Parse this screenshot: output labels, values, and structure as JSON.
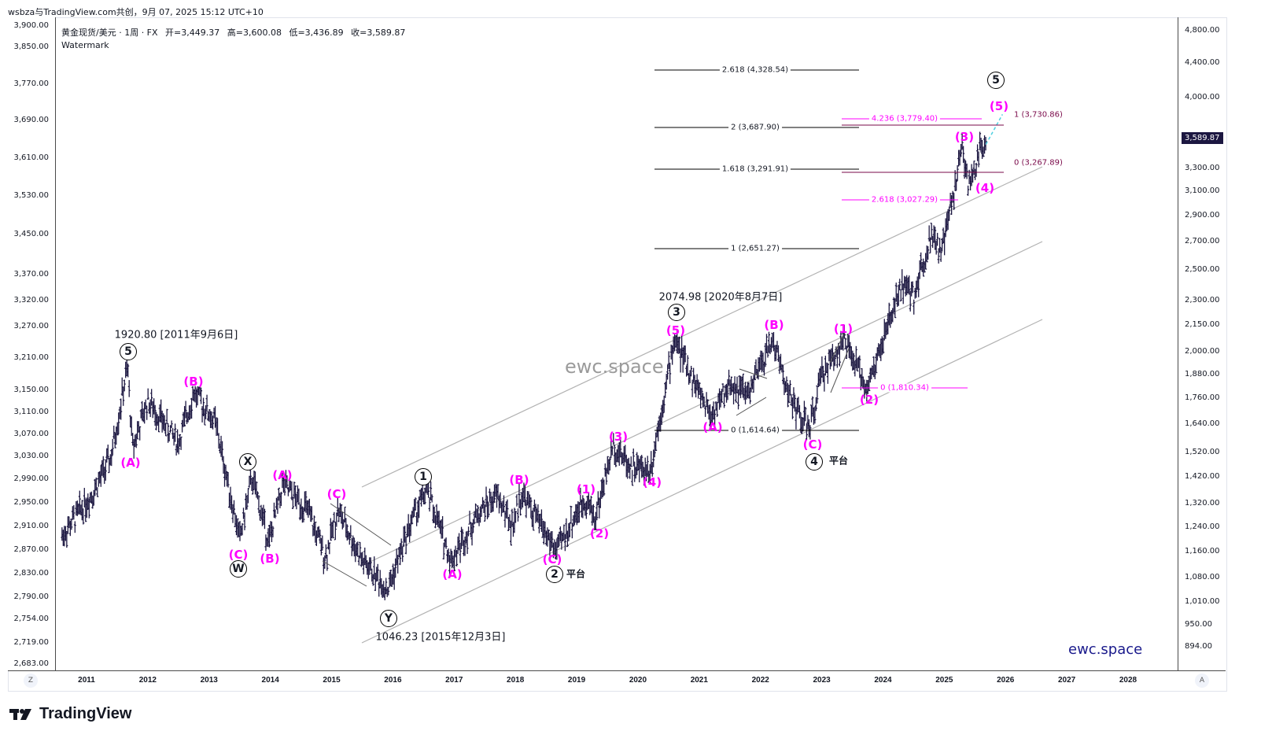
{
  "header": {
    "attribution": "wsbza与TradingView.com共创，9月 07, 2025 15:12 UTC+10"
  },
  "legend": {
    "symbol": "黄金现货/美元 · 1周 · FX",
    "open": "开=3,449.37",
    "high": "高=3,600.08",
    "low": "低=3,436.89",
    "close": "收=3,589.87",
    "watermark_label": "Watermark"
  },
  "price_badge": "3,589.87",
  "watermark": "ewc.space",
  "brand": "ewc.space",
  "footer": {
    "logo_text": "TradingView"
  },
  "axis_buttons": {
    "left": "Z",
    "right": "A"
  },
  "colors": {
    "bars": "#1c1741",
    "wave_label": "#ff00ff",
    "fib_black": "#000000",
    "fib_pink": "#ff00ff",
    "fib_maroon": "#7a0a4a",
    "channel": "#b2b2b2",
    "projection": "#4dd0e1"
  },
  "chart_data": {
    "type": "bar",
    "title": "黄金现货/美元 · 1周 · FX",
    "scale": "log",
    "x_ticks": [
      "2011",
      "2012",
      "2013",
      "2014",
      "2015",
      "2016",
      "2017",
      "2018",
      "2019",
      "2020",
      "2021",
      "2022",
      "2023",
      "2024",
      "2025",
      "2026",
      "2027",
      "2028"
    ],
    "left_axis_ticks": [
      "3,900.00",
      "3,850.00",
      "3,770.00",
      "3,690.00",
      "3,610.00",
      "3,530.00",
      "3,450.00",
      "3,370.00",
      "3,320.00",
      "3,270.00",
      "3,210.00",
      "3,150.00",
      "3,110.00",
      "3,070.00",
      "3,030.00",
      "2,990.00",
      "2,950.00",
      "2,910.00",
      "2,870.00",
      "2,830.00",
      "2,790.00",
      "2,754.00",
      "2,719.00",
      "2,683.00"
    ],
    "right_axis_ticks": [
      "4,800.00",
      "4,400.00",
      "4,000.00",
      "3,300.00",
      "3,100.00",
      "2,900.00",
      "2,700.00",
      "2,500.00",
      "2,300.00",
      "2,150.00",
      "2,000.00",
      "1,880.00",
      "1,760.00",
      "1,640.00",
      "1,520.00",
      "1,420.00",
      "1,320.00",
      "1,240.00",
      "1,160.00",
      "1,080.00",
      "1,010.00",
      "950.00",
      "894.00"
    ],
    "right_axis_values": [
      4800,
      4400,
      4000,
      3300,
      3100,
      2900,
      2700,
      2500,
      2300,
      2150,
      2000,
      1880,
      1760,
      1640,
      1520,
      1420,
      1320,
      1240,
      1160,
      1080,
      1010,
      950,
      894
    ],
    "series_keypoints": [
      {
        "t": 2010.6,
        "p": 1210
      },
      {
        "t": 2011.1,
        "p": 1360
      },
      {
        "t": 2011.4,
        "p": 1500
      },
      {
        "t": 2011.67,
        "p": 1920.8
      },
      {
        "t": 2011.75,
        "p": 1540
      },
      {
        "t": 2012.0,
        "p": 1750
      },
      {
        "t": 2012.5,
        "p": 1560
      },
      {
        "t": 2012.75,
        "p": 1790
      },
      {
        "t": 2013.1,
        "p": 1650
      },
      {
        "t": 2013.5,
        "p": 1200
      },
      {
        "t": 2013.7,
        "p": 1420
      },
      {
        "t": 2013.98,
        "p": 1190
      },
      {
        "t": 2014.2,
        "p": 1390
      },
      {
        "t": 2014.6,
        "p": 1300
      },
      {
        "t": 2014.9,
        "p": 1140
      },
      {
        "t": 2015.1,
        "p": 1300
      },
      {
        "t": 2015.5,
        "p": 1130
      },
      {
        "t": 2015.92,
        "p": 1046.23
      },
      {
        "t": 2016.3,
        "p": 1260
      },
      {
        "t": 2016.55,
        "p": 1375
      },
      {
        "t": 2016.95,
        "p": 1130
      },
      {
        "t": 2017.4,
        "p": 1290
      },
      {
        "t": 2017.7,
        "p": 1350
      },
      {
        "t": 2017.95,
        "p": 1240
      },
      {
        "t": 2018.1,
        "p": 1360
      },
      {
        "t": 2018.67,
        "p": 1160
      },
      {
        "t": 2019.0,
        "p": 1290
      },
      {
        "t": 2019.15,
        "p": 1340
      },
      {
        "t": 2019.3,
        "p": 1270
      },
      {
        "t": 2019.6,
        "p": 1550
      },
      {
        "t": 2019.9,
        "p": 1460
      },
      {
        "t": 2020.2,
        "p": 1450
      },
      {
        "t": 2020.6,
        "p": 2074.98
      },
      {
        "t": 2020.9,
        "p": 1850
      },
      {
        "t": 2021.2,
        "p": 1680
      },
      {
        "t": 2021.5,
        "p": 1830
      },
      {
        "t": 2021.8,
        "p": 1780
      },
      {
        "t": 2022.2,
        "p": 2070
      },
      {
        "t": 2022.5,
        "p": 1750
      },
      {
        "t": 2022.8,
        "p": 1614.64
      },
      {
        "t": 2023.0,
        "p": 1880
      },
      {
        "t": 2023.35,
        "p": 2060
      },
      {
        "t": 2023.6,
        "p": 1900
      },
      {
        "t": 2023.75,
        "p": 1810.34
      },
      {
        "t": 2024.0,
        "p": 2060
      },
      {
        "t": 2024.3,
        "p": 2400
      },
      {
        "t": 2024.5,
        "p": 2330
      },
      {
        "t": 2024.8,
        "p": 2780
      },
      {
        "t": 2024.95,
        "p": 2600
      },
      {
        "t": 2025.3,
        "p": 3500
      },
      {
        "t": 2025.4,
        "p": 3120
      },
      {
        "t": 2025.55,
        "p": 3420
      },
      {
        "t": 2025.68,
        "p": 3589.87
      }
    ],
    "fib_levels_black": [
      {
        "label": "2.618 (4,328.54)",
        "value": 4328.54
      },
      {
        "label": "2 (3,687.90)",
        "value": 3687.9
      },
      {
        "label": "1.618 (3,291.91)",
        "value": 3291.91
      },
      {
        "label": "1 (2,651.27)",
        "value": 2651.27
      },
      {
        "label": "0 (1,614.64)",
        "value": 1614.64
      }
    ],
    "fib_levels_pink": [
      {
        "label": "4.236 (3,779.40)",
        "value": 3779.4
      },
      {
        "label": "2.618 (3,027.29)",
        "value": 3027.29
      },
      {
        "label": "0 (1,810.34)",
        "value": 1810.34
      }
    ],
    "fib_levels_maroon": [
      {
        "label": "1 (3,730.86)",
        "value": 3730.86
      },
      {
        "label": "0 (3,267.89)",
        "value": 3267.89
      }
    ],
    "annotations": {
      "peak_2011": "1920.80 [2011年9月6日]",
      "peak_2020": "2074.98 [2020年8月7日]",
      "low_2015": "1046.23 [2015年12月3日]",
      "flat_2": "平台",
      "flat_4": "平台"
    },
    "wave_labels": [
      {
        "text": "5",
        "kind": "circle"
      },
      {
        "text": "(A)",
        "kind": "mag"
      },
      {
        "text": "(B)",
        "kind": "mag"
      },
      {
        "text": "(C)",
        "kind": "mag"
      },
      {
        "text": "W",
        "kind": "circle"
      },
      {
        "text": "X",
        "kind": "circle"
      },
      {
        "text": "(A)",
        "kind": "mag"
      },
      {
        "text": "(B)",
        "kind": "mag"
      },
      {
        "text": "(C)",
        "kind": "mag"
      },
      {
        "text": "Y",
        "kind": "circle"
      },
      {
        "text": "1",
        "kind": "circle"
      },
      {
        "text": "(A)",
        "kind": "mag"
      },
      {
        "text": "(B)",
        "kind": "mag"
      },
      {
        "text": "(C)",
        "kind": "mag"
      },
      {
        "text": "2",
        "kind": "circle"
      },
      {
        "text": "(1)",
        "kind": "mag"
      },
      {
        "text": "(2)",
        "kind": "mag"
      },
      {
        "text": "(3)",
        "kind": "mag"
      },
      {
        "text": "(4)",
        "kind": "mag"
      },
      {
        "text": "(5)",
        "kind": "mag"
      },
      {
        "text": "3",
        "kind": "circle"
      },
      {
        "text": "(A)",
        "kind": "mag"
      },
      {
        "text": "(B)",
        "kind": "mag"
      },
      {
        "text": "(C)",
        "kind": "mag"
      },
      {
        "text": "4",
        "kind": "circle"
      },
      {
        "text": "(1)",
        "kind": "mag"
      },
      {
        "text": "(2)",
        "kind": "mag"
      },
      {
        "text": "(3)",
        "kind": "mag"
      },
      {
        "text": "(4)",
        "kind": "mag"
      },
      {
        "text": "(5)",
        "kind": "mag"
      },
      {
        "text": "5",
        "kind": "circle"
      }
    ]
  }
}
